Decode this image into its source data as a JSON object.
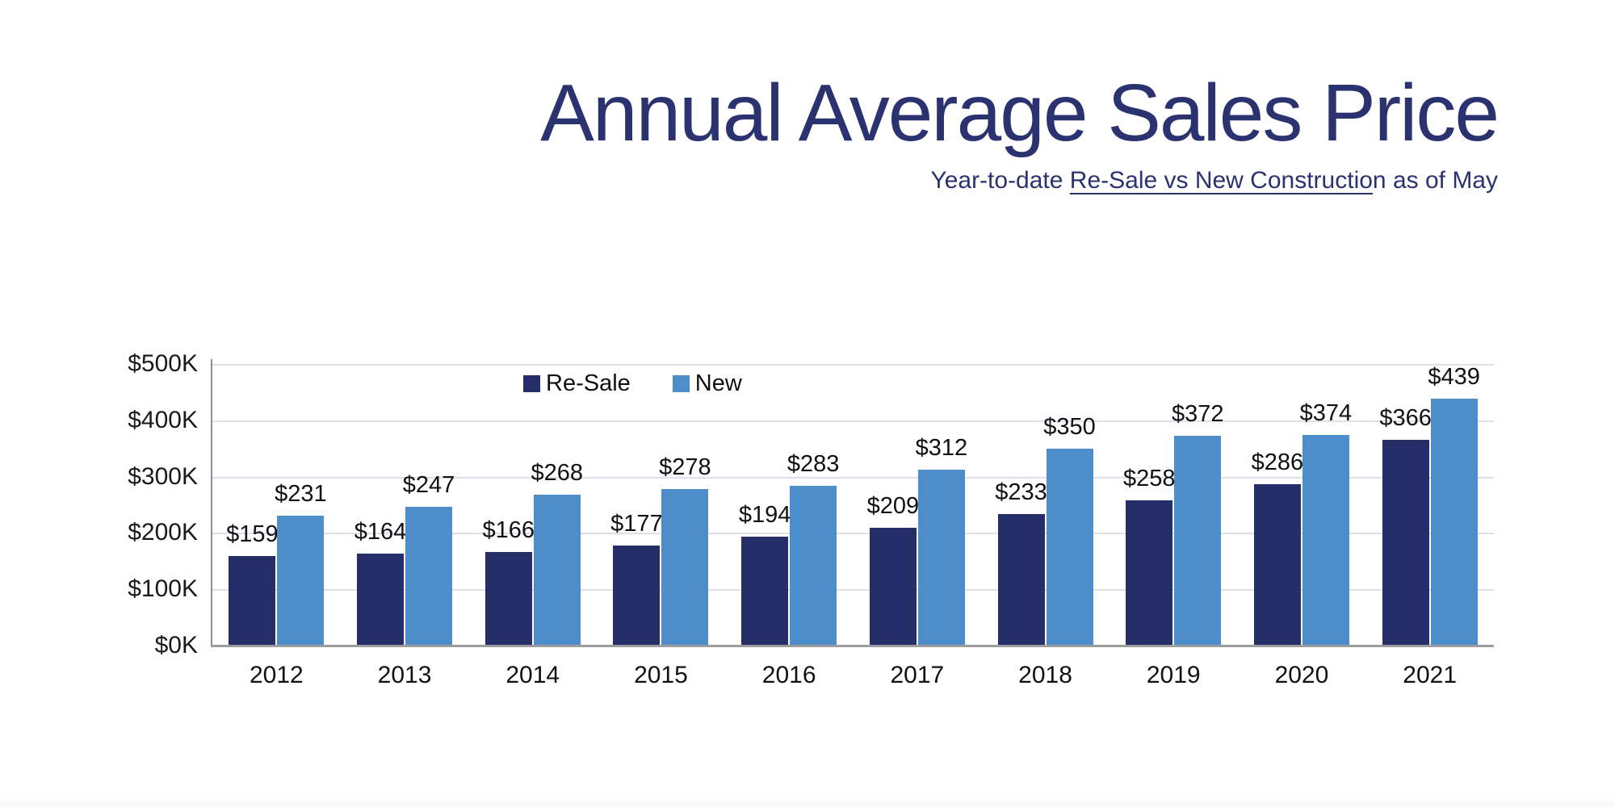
{
  "header": {
    "title": "Annual Average Sales Price",
    "subtitle": "Year-to-date Re-Sale vs New Construction as of May",
    "subtitle_segments": [
      {
        "text": "Year-to-date ",
        "underline": false
      },
      {
        "text": "Re-Sale vs New Constructio",
        "underline": true
      },
      {
        "text": "n as of May",
        "underline": false
      }
    ],
    "title_color": "#2b3270"
  },
  "legend": {
    "items": [
      {
        "label": "Re-Sale",
        "color": "#252e68"
      },
      {
        "label": "New",
        "color": "#4d8dca"
      }
    ]
  },
  "chart_data": {
    "type": "bar",
    "title": "Annual Average Sales Price",
    "subtitle": "Year-to-date Re-Sale vs New Construction as of May",
    "categories": [
      "2012",
      "2013",
      "2014",
      "2015",
      "2016",
      "2017",
      "2018",
      "2019",
      "2020",
      "2021"
    ],
    "series": [
      {
        "name": "Re-Sale",
        "color": "#252e68",
        "values": [
          159,
          164,
          166,
          177,
          194,
          209,
          233,
          258,
          286,
          366
        ],
        "data_labels": [
          "$159",
          "$164",
          "$166",
          "$177",
          "$194",
          "$209",
          "$233",
          "$258",
          "$286",
          "$366"
        ]
      },
      {
        "name": "New",
        "color": "#4d8dca",
        "values": [
          231,
          247,
          268,
          278,
          283,
          312,
          350,
          372,
          374,
          439
        ],
        "data_labels": [
          "$231",
          "$247",
          "$268",
          "$278",
          "$283",
          "$312",
          "$350",
          "$372",
          "$374",
          "$439"
        ]
      }
    ],
    "xlabel": "",
    "ylabel": "",
    "y_ticks": [
      "$0K",
      "$100K",
      "$200K",
      "$300K",
      "$400K",
      "$500K"
    ],
    "ylim": [
      0,
      500
    ],
    "value_unit": "thousand USD",
    "grid": true,
    "legend_position": "top-center",
    "colors": {
      "gridline": "#dce1ec",
      "axis_line": "#8f9095",
      "baseline": "#9d9da1",
      "label_text": "#111111"
    }
  }
}
